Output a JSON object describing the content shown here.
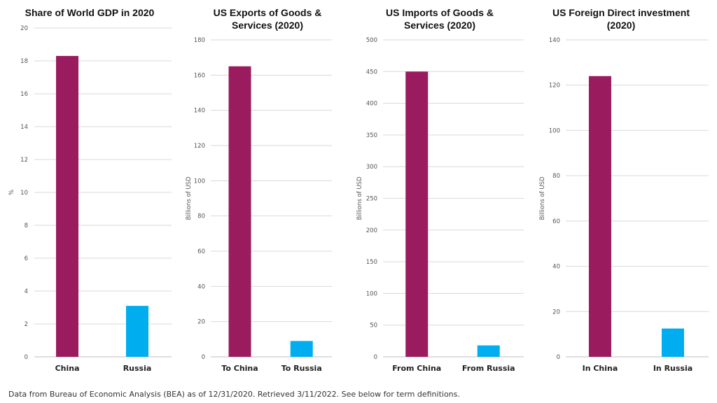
{
  "colors": {
    "primary": "#9B1B5F",
    "secondary": "#00AEEF"
  },
  "chart_data": [
    {
      "type": "bar",
      "title_lines": [
        "Share of World GDP in 2020"
      ],
      "ylabel": "%",
      "categories": [
        "China",
        "Russia"
      ],
      "values": [
        18.3,
        3.1
      ],
      "ylim": [
        0,
        20
      ],
      "yticks": [
        0,
        2,
        4,
        6,
        8,
        10,
        12,
        14,
        16,
        18,
        20
      ],
      "grid": true
    },
    {
      "type": "bar",
      "title_lines": [
        "US Exports of Goods &",
        "Services (2020)"
      ],
      "ylabel": "Billions of USD",
      "categories": [
        "To China",
        "To Russia"
      ],
      "values": [
        165,
        9
      ],
      "ylim": [
        0,
        180
      ],
      "yticks": [
        0,
        20,
        40,
        60,
        80,
        100,
        120,
        140,
        160,
        180
      ],
      "grid": true
    },
    {
      "type": "bar",
      "title_lines": [
        "US Imports of Goods &",
        "Services (2020)"
      ],
      "ylabel": "Billions of USD",
      "categories": [
        "From China",
        "From Russia"
      ],
      "values": [
        450,
        18
      ],
      "ylim": [
        0,
        500
      ],
      "yticks": [
        0,
        50,
        100,
        150,
        200,
        250,
        300,
        350,
        400,
        450,
        500
      ],
      "grid": true
    },
    {
      "type": "bar",
      "title_lines": [
        "US Foreign Direct investment",
        "(2020)"
      ],
      "ylabel": "Billions of USD",
      "categories": [
        "In China",
        "In Russia"
      ],
      "values": [
        124,
        12.5
      ],
      "ylim": [
        0,
        140
      ],
      "yticks": [
        0,
        20,
        40,
        60,
        80,
        100,
        120,
        140
      ],
      "grid": true
    }
  ],
  "footnote": "Data from Bureau of Economic Analysis (BEA) as of 12/31/2020. Retrieved 3/11/2022. See below for term definitions."
}
